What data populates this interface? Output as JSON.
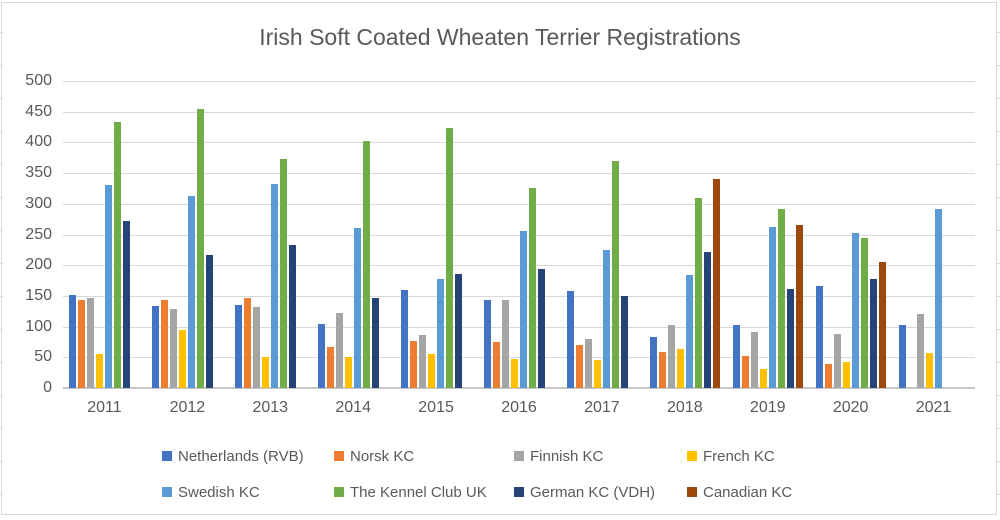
{
  "header": {
    "title": "Irish Soft Coated Wheaten Terrier Registrations"
  },
  "chart_data": {
    "type": "bar",
    "title": "Irish Soft Coated Wheaten Terrier Registrations",
    "xlabel": "",
    "ylabel": "",
    "categories": [
      "2011",
      "2012",
      "2013",
      "2014",
      "2015",
      "2016",
      "2017",
      "2018",
      "2019",
      "2020",
      "2021"
    ],
    "series": [
      {
        "name": "Netherlands (RVB)",
        "color": "#4472C4",
        "values": [
          152,
          133,
          135,
          105,
          160,
          144,
          158,
          83,
          103,
          166,
          103
        ]
      },
      {
        "name": "Norsk KC",
        "color": "#ED7D31",
        "values": [
          144,
          143,
          146,
          66,
          77,
          75,
          70,
          59,
          52,
          39,
          0
        ]
      },
      {
        "name": "Finnish KC",
        "color": "#A5A5A5",
        "values": [
          147,
          128,
          132,
          122,
          86,
          144,
          80,
          103,
          92,
          88,
          121
        ]
      },
      {
        "name": "French KC",
        "color": "#FFC000",
        "values": [
          56,
          94,
          50,
          50,
          56,
          47,
          46,
          64,
          31,
          43,
          57
        ]
      },
      {
        "name": "Swedish KC",
        "color": "#5B9BD5",
        "values": [
          330,
          312,
          333,
          260,
          177,
          255,
          225,
          184,
          263,
          253,
          291
        ]
      },
      {
        "name": "The Kennel Club UK",
        "color": "#70AD47",
        "values": [
          434,
          455,
          373,
          403,
          424,
          326,
          370,
          309,
          292,
          244,
          0
        ]
      },
      {
        "name": "German KC (VDH)",
        "color": "#264478",
        "values": [
          272,
          217,
          233,
          147,
          185,
          193,
          150,
          221,
          161,
          177,
          0
        ]
      },
      {
        "name": "Canadian KC",
        "color": "#9E480E",
        "values": [
          0,
          0,
          0,
          0,
          0,
          0,
          0,
          341,
          266,
          206,
          0
        ]
      }
    ],
    "ylim": [
      0,
      500
    ],
    "ytick_step": 50,
    "yticks": [
      0,
      50,
      100,
      150,
      200,
      250,
      300,
      350,
      400,
      450,
      500
    ],
    "grid": true,
    "legend_position": "bottom",
    "legend_rows": 2,
    "legend_columns": 4
  },
  "style_colors": {
    "grid": "#D9D9D9",
    "axis_text": "#595959",
    "title_text": "#595959",
    "frame_border": "#D9D9D9"
  }
}
